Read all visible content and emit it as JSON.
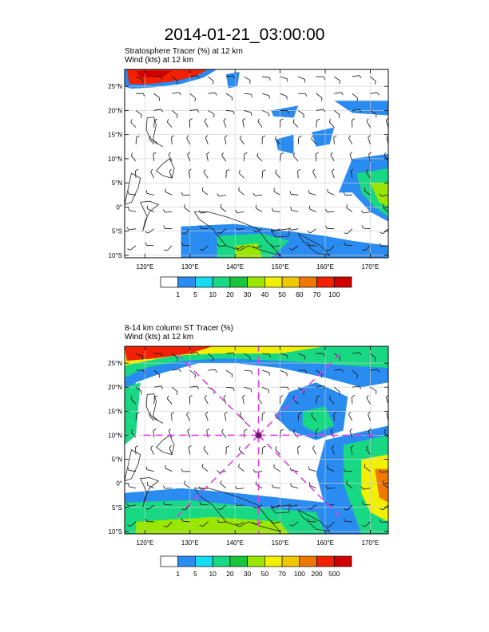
{
  "title": "2014-01-21_03:00:00",
  "panels": [
    {
      "title_line1": "Stratosphere Tracer   (%)     at   12 km",
      "title_line2": "Wind   (kts)     at   12 km",
      "lat_labels": [
        "25°N",
        "20°N",
        "15°N",
        "10°N",
        "5°N",
        "0°",
        "5°S",
        "10°S"
      ],
      "lon_labels": [
        "120°E",
        "130°E",
        "140°E",
        "150°E",
        "160°E",
        "170°E"
      ],
      "colorbar_labels": [
        "1",
        "5",
        "10",
        "20",
        "30",
        "40",
        "50",
        "60",
        "70",
        "100"
      ],
      "colors": [
        "#ffffff",
        "#2a8cf0",
        "#15dcf0",
        "#18d883",
        "#18c63c",
        "#9ae600",
        "#f0f000",
        "#f0c800",
        "#f07800",
        "#f02000",
        "#d00000"
      ]
    },
    {
      "title_line1": "8-14 km column ST Tracer   (%)",
      "title_line2": "Wind   (kts)     at   12 km",
      "lat_labels": [
        "25°N",
        "20°N",
        "15°N",
        "10°N",
        "5°N",
        "0°",
        "5°S",
        "10°S"
      ],
      "lon_labels": [
        "120°E",
        "130°E",
        "140°E",
        "150°E",
        "160°E",
        "170°E"
      ],
      "colorbar_labels": [
        "1",
        "5",
        "10",
        "20",
        "30",
        "50",
        "70",
        "100",
        "200",
        "500"
      ],
      "colors": [
        "#ffffff",
        "#2a8cf0",
        "#15dcf0",
        "#18d883",
        "#18c63c",
        "#9ae600",
        "#f0f000",
        "#f0c800",
        "#f07800",
        "#f02000",
        "#d00000"
      ]
    }
  ],
  "center_marker_color": "#e040e0"
}
